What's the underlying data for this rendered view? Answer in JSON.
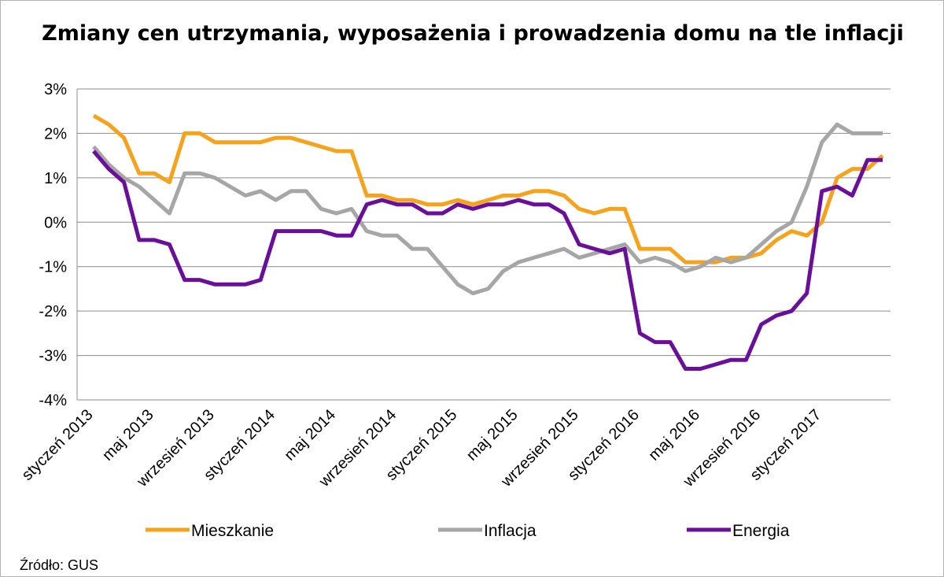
{
  "chart_data": {
    "type": "line",
    "title": "Zmiany cen utrzymania, wyposażenia i prowadzenia domu na tle inflacji",
    "source": "Źródło: GUS",
    "ylim": [
      -4,
      3
    ],
    "yticks": [
      3,
      2,
      1,
      0,
      -1,
      -2,
      -3,
      -4
    ],
    "ytick_labels": [
      "3%",
      "2%",
      "1%",
      "0%",
      "-1%",
      "-2%",
      "-3%",
      "-4%"
    ],
    "x": [
      "2013-01",
      "2013-02",
      "2013-03",
      "2013-04",
      "2013-05",
      "2013-06",
      "2013-07",
      "2013-08",
      "2013-09",
      "2013-10",
      "2013-11",
      "2013-12",
      "2014-01",
      "2014-02",
      "2014-03",
      "2014-04",
      "2014-05",
      "2014-06",
      "2014-07",
      "2014-08",
      "2014-09",
      "2014-10",
      "2014-11",
      "2014-12",
      "2015-01",
      "2015-02",
      "2015-03",
      "2015-04",
      "2015-05",
      "2015-06",
      "2015-07",
      "2015-08",
      "2015-09",
      "2015-10",
      "2015-11",
      "2015-12",
      "2016-01",
      "2016-02",
      "2016-03",
      "2016-04",
      "2016-05",
      "2016-06",
      "2016-07",
      "2016-08",
      "2016-09",
      "2016-10",
      "2016-11",
      "2016-12",
      "2017-01",
      "2017-02",
      "2017-03",
      "2017-04",
      "2017-05"
    ],
    "tick_labels": [
      {
        "month": "2013-01",
        "label": "styczeń 2013"
      },
      {
        "month": "2013-05",
        "label": "maj 2013"
      },
      {
        "month": "2013-09",
        "label": "wrzesień 2013"
      },
      {
        "month": "2014-01",
        "label": "styczeń 2014"
      },
      {
        "month": "2014-05",
        "label": "maj 2014"
      },
      {
        "month": "2014-09",
        "label": "wrzesień 2014"
      },
      {
        "month": "2015-01",
        "label": "styczeń 2015"
      },
      {
        "month": "2015-05",
        "label": "maj 2015"
      },
      {
        "month": "2015-09",
        "label": "wrzesień 2015"
      },
      {
        "month": "2016-01",
        "label": "styczeń 2016"
      },
      {
        "month": "2016-05",
        "label": "maj 2016"
      },
      {
        "month": "2016-09",
        "label": "wrzesień 2016"
      },
      {
        "month": "2017-01",
        "label": "styczeń 2017"
      }
    ],
    "series": [
      {
        "name": "Mieszkanie",
        "color": "#f7a21b",
        "values": [
          2.4,
          2.2,
          1.9,
          1.1,
          1.1,
          0.9,
          2.0,
          2.0,
          1.8,
          1.8,
          1.8,
          1.8,
          1.9,
          1.9,
          1.8,
          1.7,
          1.6,
          1.6,
          0.6,
          0.6,
          0.5,
          0.5,
          0.4,
          0.4,
          0.5,
          0.4,
          0.5,
          0.6,
          0.6,
          0.7,
          0.7,
          0.6,
          0.3,
          0.2,
          0.3,
          0.3,
          -0.6,
          -0.6,
          -0.6,
          -0.9,
          -0.9,
          -0.9,
          -0.8,
          -0.8,
          -0.7,
          -0.4,
          -0.2,
          -0.3,
          0.0,
          1.0,
          1.2,
          1.2,
          1.5
        ]
      },
      {
        "name": "Inflacja",
        "color": "#a6a6a6",
        "values": [
          1.7,
          1.3,
          1.0,
          0.8,
          0.5,
          0.2,
          1.1,
          1.1,
          1.0,
          0.8,
          0.6,
          0.7,
          0.5,
          0.7,
          0.7,
          0.3,
          0.2,
          0.3,
          -0.2,
          -0.3,
          -0.3,
          -0.6,
          -0.6,
          -1.0,
          -1.4,
          -1.6,
          -1.5,
          -1.1,
          -0.9,
          -0.8,
          -0.7,
          -0.6,
          -0.8,
          -0.7,
          -0.6,
          -0.5,
          -0.9,
          -0.8,
          -0.9,
          -1.1,
          -1.0,
          -0.8,
          -0.9,
          -0.8,
          -0.5,
          -0.2,
          0.0,
          0.8,
          1.8,
          2.2,
          2.0,
          2.0,
          2.0
        ]
      },
      {
        "name": "Energia",
        "color": "#6a0f99",
        "values": [
          1.6,
          1.2,
          0.9,
          -0.4,
          -0.4,
          -0.5,
          -1.3,
          -1.3,
          -1.4,
          -1.4,
          -1.4,
          -1.3,
          -0.2,
          -0.2,
          -0.2,
          -0.2,
          -0.3,
          -0.3,
          0.4,
          0.5,
          0.4,
          0.4,
          0.2,
          0.2,
          0.4,
          0.3,
          0.4,
          0.4,
          0.5,
          0.4,
          0.4,
          0.2,
          -0.5,
          -0.6,
          -0.7,
          -0.6,
          -2.5,
          -2.7,
          -2.7,
          -3.3,
          -3.3,
          -3.2,
          -3.1,
          -3.1,
          -2.3,
          -2.1,
          -2.0,
          -1.6,
          0.7,
          0.8,
          0.6,
          1.4,
          1.4
        ]
      }
    ],
    "grid": true,
    "legend": "bottom"
  }
}
